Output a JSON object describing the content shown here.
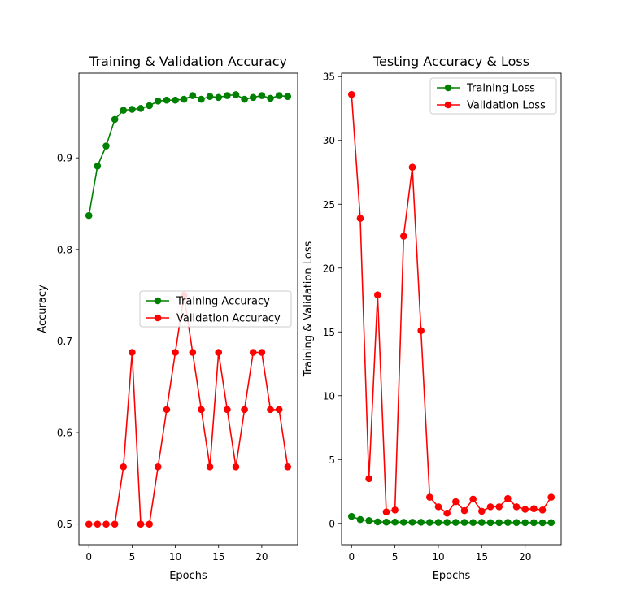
{
  "chart_data": [
    {
      "type": "line",
      "title": "Training & Validation Accuracy",
      "xlabel": "Epochs",
      "ylabel": "Accuracy",
      "xlim": [
        -1.15,
        24.15
      ],
      "ylim": [
        0.4775,
        0.9925
      ],
      "xticks": [
        0,
        5,
        10,
        15,
        20
      ],
      "yticks": [
        0.5,
        0.6,
        0.7,
        0.8,
        0.9
      ],
      "xtick_labels": [
        "0",
        "5",
        "10",
        "15",
        "20"
      ],
      "ytick_labels": [
        "0.5",
        "0.6",
        "0.7",
        "0.8",
        "0.9"
      ],
      "legend": "center-right",
      "grid": false,
      "x": [
        0,
        1,
        2,
        3,
        4,
        5,
        6,
        7,
        8,
        9,
        10,
        11,
        12,
        13,
        14,
        15,
        16,
        17,
        18,
        19,
        20,
        21,
        22,
        23
      ],
      "series": [
        {
          "name": "Training Accuracy",
          "color": "#008000",
          "values": [
            0.837,
            0.891,
            0.913,
            0.942,
            0.952,
            0.953,
            0.954,
            0.957,
            0.962,
            0.963,
            0.963,
            0.964,
            0.968,
            0.964,
            0.967,
            0.966,
            0.968,
            0.969,
            0.964,
            0.966,
            0.968,
            0.965,
            0.968,
            0.967
          ]
        },
        {
          "name": "Validation Accuracy",
          "color": "#ff0000",
          "values": [
            0.5,
            0.5,
            0.5,
            0.5,
            0.5625,
            0.6875,
            0.5,
            0.5,
            0.5625,
            0.625,
            0.6875,
            0.75,
            0.6875,
            0.625,
            0.5625,
            0.6875,
            0.625,
            0.5625,
            0.625,
            0.6875,
            0.6875,
            0.625,
            0.625,
            0.5625
          ]
        }
      ]
    },
    {
      "type": "line",
      "title": "Testing Accuracy & Loss",
      "xlabel": "Epochs",
      "ylabel": "Training & Validation Loss",
      "xlim": [
        -1.15,
        24.15
      ],
      "ylim": [
        -1.67,
        35.27
      ],
      "xticks": [
        0,
        5,
        10,
        15,
        20
      ],
      "yticks": [
        0,
        5,
        10,
        15,
        20,
        25,
        30,
        35
      ],
      "xtick_labels": [
        "0",
        "5",
        "10",
        "15",
        "20"
      ],
      "ytick_labels": [
        "0",
        "5",
        "10",
        "15",
        "20",
        "25",
        "30",
        "35"
      ],
      "legend": "top-right",
      "grid": false,
      "x": [
        0,
        1,
        2,
        3,
        4,
        5,
        6,
        7,
        8,
        9,
        10,
        11,
        12,
        13,
        14,
        15,
        16,
        17,
        18,
        19,
        20,
        21,
        22,
        23
      ],
      "series": [
        {
          "name": "Training Loss",
          "color": "#008000",
          "values": [
            0.55,
            0.3,
            0.22,
            0.12,
            0.1,
            0.1,
            0.09,
            0.09,
            0.09,
            0.08,
            0.08,
            0.08,
            0.08,
            0.08,
            0.07,
            0.08,
            0.06,
            0.06,
            0.08,
            0.07,
            0.06,
            0.06,
            0.05,
            0.06
          ]
        },
        {
          "name": "Validation Loss",
          "color": "#ff0000",
          "values": [
            33.6,
            23.9,
            3.5,
            17.9,
            0.9,
            1.05,
            22.5,
            27.9,
            15.1,
            2.05,
            1.3,
            0.8,
            1.7,
            1.0,
            1.9,
            0.95,
            1.3,
            1.3,
            1.95,
            1.3,
            1.1,
            1.15,
            1.05,
            2.05
          ]
        }
      ]
    }
  ]
}
